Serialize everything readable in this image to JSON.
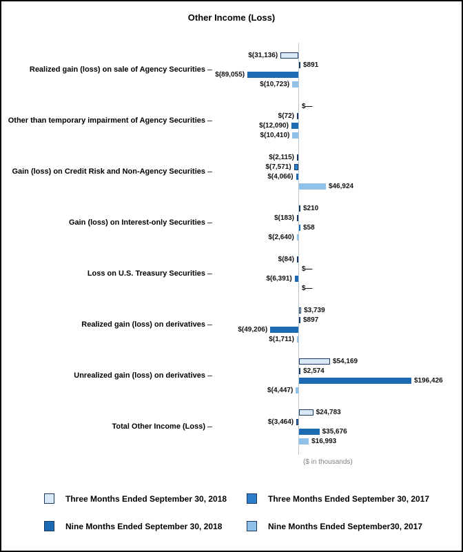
{
  "chart_data": {
    "type": "bar",
    "orientation": "horizontal",
    "title": "Other Income (Loss)",
    "axis_note": "($ in thousands)",
    "value_unit": "thousands of dollars",
    "legend_position": "bottom",
    "grid": false,
    "xlim": [
      -100000,
      210000
    ],
    "categories": [
      "Realized gain (loss) on sale of Agency Securities",
      "Other than temporary impairment of Agency Securities",
      "Gain (loss) on Credit Risk and Non-Agency Securities",
      "Gain (loss) on Interest-only Securities",
      "Loss on U.S. Treasury Securities",
      "Realized gain (loss) on derivatives",
      "Unrealized gain (loss) on derivatives",
      "Total Other Income (Loss)"
    ],
    "series": [
      {
        "name": "Three Months Ended September 30, 2018",
        "fill": "#dae9f8",
        "border": "#17375e",
        "values": [
          -31136,
          0,
          -2115,
          210,
          -84,
          3739,
          54169,
          24783
        ],
        "labels": [
          "$(31,136)",
          "$—",
          "$(2,115)",
          "$210",
          "$(84)",
          "$3,739",
          "$54,169",
          "$24,783"
        ]
      },
      {
        "name": "Three Months Ended September 30, 2017",
        "fill": "#2d7ecb",
        "border": "#17375e",
        "values": [
          891,
          -72,
          -7571,
          -183,
          0,
          897,
          2574,
          -3464
        ],
        "labels": [
          "$891",
          "$(72)",
          "$(7,571)",
          "$(183)",
          "$—",
          "$897",
          "$2,574",
          "$(3,464)"
        ]
      },
      {
        "name": "Nine Months Ended September 30, 2018",
        "fill": "#1b6ab3",
        "border": "#1b6ab3",
        "values": [
          -89055,
          -12090,
          -4066,
          58,
          -6391,
          -49206,
          196426,
          35676
        ],
        "labels": [
          "$(89,055)",
          "$(12,090)",
          "$(4,066)",
          "$58",
          "$(6,391)",
          "$(49,206)",
          "$196,426",
          "$35,676"
        ]
      },
      {
        "name": "Nine Months Ended September30, 2017",
        "fill": "#8fc1e9",
        "border": "#8fc1e9",
        "values": [
          -10723,
          -10410,
          46924,
          -2640,
          0,
          -1711,
          -4447,
          16993
        ],
        "labels": [
          "$(10,723)",
          "$(10,410)",
          "$46,924",
          "$(2,640)",
          "$—",
          "$(1,711)",
          "$(4,447)",
          "$16,993"
        ]
      }
    ]
  },
  "legend": {
    "swatch_border": "#17375e"
  }
}
